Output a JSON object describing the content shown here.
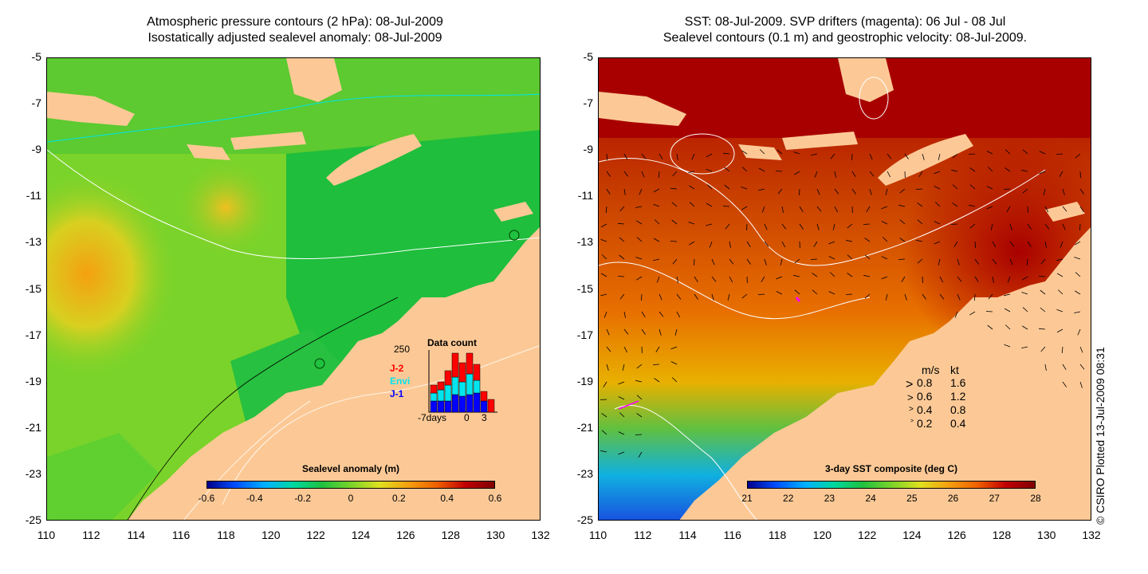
{
  "left_panel": {
    "title_line1": "Atmospheric pressure contours (2 hPa): 08-Jul-2009",
    "title_line2": "Isostatically adjusted sealevel anomaly: 08-Jul-2009",
    "y_ticks": [
      "-5",
      "-7",
      "-9",
      "-11",
      "-13",
      "-15",
      "-17",
      "-19",
      "-21",
      "-23",
      "-25"
    ],
    "x_ticks": [
      "110",
      "112",
      "114",
      "116",
      "118",
      "120",
      "122",
      "124",
      "126",
      "128",
      "130",
      "132"
    ],
    "colorbar_label": "Sealevel anomaly (m)",
    "colorbar_ticks": [
      "-0.6",
      "-0.4",
      "-0.2",
      "0",
      "0.2",
      "0.4",
      "0.6"
    ],
    "data_count": {
      "title": "Data count",
      "ymax_label": "250",
      "x_labels": [
        "-7days",
        "0",
        "3"
      ],
      "legend": [
        {
          "label": "J-2",
          "color": "#ff0000"
        },
        {
          "label": "Envi",
          "color": "#00e5ee"
        },
        {
          "label": "J-1",
          "color": "#0000ff"
        }
      ]
    }
  },
  "right_panel": {
    "title_line1": "SST: 08-Jul-2009. SVP drifters (magenta): 06 Jul - 08 Jul",
    "title_line2": "Sealevel contours (0.1 m) and geostrophic velocity: 08-Jul-2009.",
    "y_ticks": [
      "-5",
      "-7",
      "-9",
      "-11",
      "-13",
      "-15",
      "-17",
      "-19",
      "-21",
      "-23",
      "-25"
    ],
    "x_ticks": [
      "110",
      "112",
      "114",
      "116",
      "118",
      "120",
      "122",
      "124",
      "126",
      "128",
      "130",
      "132"
    ],
    "colorbar_label": "3-day SST composite (deg C)",
    "colorbar_ticks": [
      "21",
      "22",
      "23",
      "24",
      "25",
      "26",
      "27",
      "28"
    ],
    "velocity_legend": {
      "header_ms": "m/s",
      "header_kt": "kt",
      "rows": [
        {
          "ms": "0.8",
          "kt": "1.6"
        },
        {
          "ms": "0.6",
          "kt": "1.2"
        },
        {
          "ms": "0.4",
          "kt": "0.8"
        },
        {
          "ms": "0.2",
          "kt": "0.4"
        }
      ]
    }
  },
  "credit": "© CSIRO Plotted 13-Jul-2009 08:31",
  "colors": {
    "land": "#fcc996",
    "sla_high": "#f4a010",
    "sla_mid": "#7ad32a",
    "sla_low": "#20c040",
    "sst_hot": "#a80000",
    "sst_warm": "#e86a00",
    "sst_cool": "#1878f0"
  }
}
